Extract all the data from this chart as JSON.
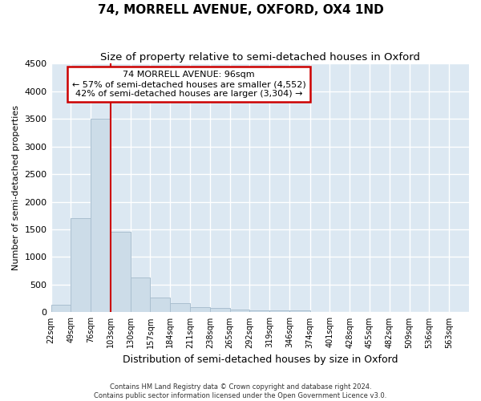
{
  "title": "74, MORRELL AVENUE, OXFORD, OX4 1ND",
  "subtitle": "Size of property relative to semi-detached houses in Oxford",
  "xlabel": "Distribution of semi-detached houses by size in Oxford",
  "ylabel": "Number of semi-detached properties",
  "bar_color": "#ccdce8",
  "bar_edge_color": "#aabfd0",
  "annotation_box_color": "#cc0000",
  "annotation_line_color": "#cc0000",
  "grid_color": "#ffffff",
  "bg_color": "#dce8f2",
  "property_line_x": 103,
  "annotation_title": "74 MORRELL AVENUE: 96sqm",
  "annotation_smaller": "← 57% of semi-detached houses are smaller (4,552)",
  "annotation_larger": "42% of semi-detached houses are larger (3,304) →",
  "footnote1": "Contains HM Land Registry data © Crown copyright and database right 2024.",
  "footnote2": "Contains public sector information licensed under the Open Government Licence v3.0.",
  "bin_labels": [
    "22sqm",
    "49sqm",
    "76sqm",
    "103sqm",
    "130sqm",
    "157sqm",
    "184sqm",
    "211sqm",
    "238sqm",
    "265sqm",
    "292sqm",
    "319sqm",
    "346sqm",
    "374sqm",
    "401sqm",
    "428sqm",
    "455sqm",
    "482sqm",
    "509sqm",
    "536sqm",
    "563sqm"
  ],
  "bin_edges": [
    22,
    49,
    76,
    103,
    130,
    157,
    184,
    211,
    238,
    265,
    292,
    319,
    346,
    374,
    401,
    428,
    455,
    482,
    509,
    536,
    563,
    590
  ],
  "bar_heights": [
    130,
    1700,
    3500,
    1450,
    625,
    265,
    160,
    90,
    75,
    50,
    40,
    30,
    40,
    0,
    0,
    0,
    0,
    0,
    0,
    0,
    0
  ],
  "ylim": [
    0,
    4500
  ],
  "yticks": [
    0,
    500,
    1000,
    1500,
    2000,
    2500,
    3000,
    3500,
    4000,
    4500
  ]
}
